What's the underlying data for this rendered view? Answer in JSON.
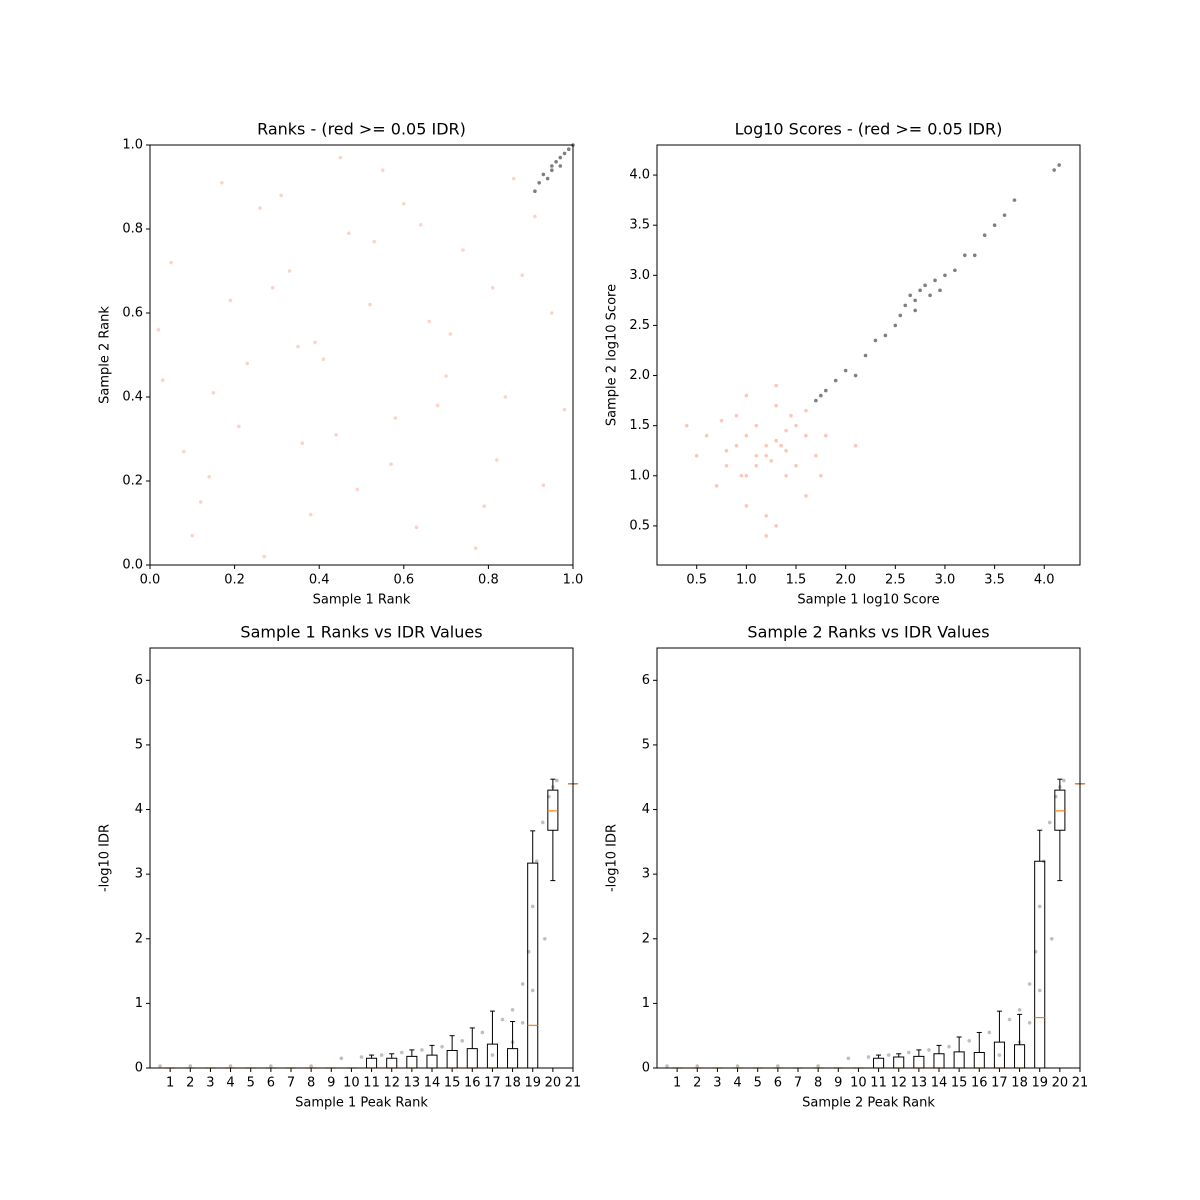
{
  "chart_data": [
    {
      "type": "scatter",
      "title": "Ranks - (red >= 0.05 IDR)",
      "xlabel": "Sample 1 Rank",
      "ylabel": "Sample 2 Rank",
      "xlim": [
        0,
        1
      ],
      "ylim": [
        0,
        1
      ],
      "xticks": [
        {
          "value": 0,
          "label": "0.0"
        },
        0.2,
        0.4,
        0.6,
        0.8,
        {
          "value": 1,
          "label": "1.0"
        }
      ],
      "yticks": [
        {
          "value": 0,
          "label": "0.0"
        },
        0.2,
        0.4,
        0.6,
        0.8,
        {
          "value": 1,
          "label": "1.0"
        }
      ],
      "series": [
        {
          "color": "#fa8060",
          "opacity": 0.35,
          "x": [
            0.05,
            0.12,
            0.23,
            0.31,
            0.44,
            0.52,
            0.63,
            0.71,
            0.84,
            0.91,
            0.08,
            0.17,
            0.29,
            0.38,
            0.47,
            0.58,
            0.66,
            0.77,
            0.88,
            0.03,
            0.14,
            0.26,
            0.35,
            0.49,
            0.55,
            0.68,
            0.74,
            0.82,
            0.95,
            0.1,
            0.21,
            0.33,
            0.41,
            0.6,
            0.79,
            0.86,
            0.02,
            0.19,
            0.36,
            0.53,
            0.7,
            0.93,
            0.27,
            0.45,
            0.64,
            0.81,
            0.15,
            0.39,
            0.57,
            0.98
          ],
          "y": [
            0.72,
            0.15,
            0.48,
            0.88,
            0.31,
            0.62,
            0.09,
            0.55,
            0.4,
            0.83,
            0.27,
            0.91,
            0.66,
            0.12,
            0.79,
            0.35,
            0.58,
            0.04,
            0.69,
            0.44,
            0.21,
            0.85,
            0.52,
            0.18,
            0.94,
            0.38,
            0.75,
            0.25,
            0.6,
            0.07,
            0.33,
            0.7,
            0.49,
            0.86,
            0.14,
            0.92,
            0.56,
            0.63,
            0.29,
            0.77,
            0.45,
            0.19,
            0.02,
            0.97,
            0.81,
            0.66,
            0.41,
            0.53,
            0.24,
            0.37
          ]
        },
        {
          "color": "#000000",
          "opacity": 0.5,
          "x": [
            0.92,
            0.93,
            0.94,
            0.95,
            0.95,
            0.96,
            0.97,
            0.97,
            0.98,
            0.99,
            1.0,
            0.91
          ],
          "y": [
            0.91,
            0.93,
            0.92,
            0.95,
            0.94,
            0.96,
            0.97,
            0.95,
            0.98,
            0.99,
            1.0,
            0.89
          ]
        }
      ]
    },
    {
      "type": "scatter",
      "title": "Log10 Scores - (red >= 0.05 IDR)",
      "xlabel": "Sample 1 log10 Score",
      "ylabel": "Sample 2 log10 Score",
      "xlim": [
        0.1,
        4.36
      ],
      "ylim": [
        0.11,
        4.3
      ],
      "xticks": [
        0.5,
        {
          "value": 1,
          "label": "1.0"
        },
        1.5,
        {
          "value": 2,
          "label": "2.0"
        },
        2.5,
        {
          "value": 3,
          "label": "3.0"
        },
        3.5,
        {
          "value": 4,
          "label": "4.0"
        }
      ],
      "yticks": [
        0.5,
        {
          "value": 1,
          "label": "1.0"
        },
        1.5,
        {
          "value": 2,
          "label": "2.0"
        },
        2.5,
        {
          "value": 3,
          "label": "3.0"
        },
        3.5,
        {
          "value": 4,
          "label": "4.0"
        }
      ],
      "series": [
        {
          "color": "#fa8060",
          "opacity": 0.45,
          "x": [
            0.6,
            0.8,
            0.9,
            1.0,
            1.1,
            1.2,
            1.3,
            1.4,
            1.5,
            1.6,
            1.7,
            0.7,
            0.9,
            1.0,
            1.1,
            1.2,
            1.3,
            1.4,
            1.5,
            1.6,
            0.8,
            1.0,
            1.2,
            1.3,
            1.4,
            1.1,
            1.25,
            1.35,
            0.95,
            1.45,
            0.5,
            1.75,
            0.4,
            1.8,
            2.1,
            1.2,
            1.0,
            1.3,
            1.6,
            0.75
          ],
          "y": [
            1.4,
            1.1,
            1.3,
            1.0,
            1.5,
            1.2,
            1.35,
            1.25,
            1.1,
            1.4,
            1.2,
            0.9,
            1.6,
            1.4,
            1.1,
            1.3,
            1.7,
            1.0,
            1.5,
            0.8,
            1.25,
            0.7,
            0.6,
            1.9,
            1.45,
            1.2,
            1.15,
            1.3,
            1.0,
            1.6,
            1.2,
            1.0,
            1.5,
            1.4,
            1.3,
            0.4,
            1.8,
            0.5,
            1.65,
            1.55
          ]
        },
        {
          "color": "#000000",
          "opacity": 0.5,
          "x": [
            1.7,
            1.75,
            1.8,
            1.9,
            2.0,
            2.1,
            2.2,
            2.3,
            2.4,
            2.5,
            2.55,
            2.6,
            2.65,
            2.7,
            2.75,
            2.8,
            2.85,
            2.9,
            2.95,
            3.0,
            3.1,
            3.2,
            3.3,
            3.4,
            3.5,
            3.6,
            3.7,
            4.1,
            4.15,
            2.7
          ],
          "y": [
            1.75,
            1.8,
            1.85,
            1.95,
            2.05,
            2.0,
            2.2,
            2.35,
            2.4,
            2.5,
            2.6,
            2.7,
            2.8,
            2.75,
            2.85,
            2.9,
            2.8,
            2.95,
            2.85,
            3.0,
            3.05,
            3.2,
            3.2,
            3.4,
            3.5,
            3.6,
            3.75,
            4.05,
            4.1,
            2.65
          ]
        }
      ]
    },
    {
      "type": "box",
      "title": "Sample 1 Ranks vs IDR Values",
      "xlabel": "Sample 1 Peak Rank",
      "ylabel": "-log10 IDR",
      "xlim": [
        0,
        21
      ],
      "ylim": [
        0,
        6.5
      ],
      "xticks": [
        1,
        2,
        3,
        4,
        5,
        6,
        7,
        8,
        9,
        10,
        11,
        12,
        13,
        14,
        15,
        16,
        17,
        18,
        19,
        20,
        21
      ],
      "yticks": [
        0,
        1,
        2,
        3,
        4,
        5,
        6
      ],
      "points": {
        "color": "#000000",
        "opacity": 0.25,
        "x": [
          0.5,
          2,
          4,
          6,
          8,
          9.5,
          10.5,
          11.5,
          12.5,
          13.5,
          14.5,
          15.5,
          16.5,
          17.5,
          18,
          18.5,
          18.8,
          19,
          19.2,
          19.5,
          19.8,
          20,
          20.2,
          17,
          18,
          18.5,
          19,
          19.6
        ],
        "y": [
          0.03,
          0.03,
          0.03,
          0.03,
          0.03,
          0.15,
          0.17,
          0.2,
          0.24,
          0.28,
          0.33,
          0.42,
          0.55,
          0.75,
          0.9,
          1.3,
          1.8,
          2.5,
          3.2,
          3.8,
          4.2,
          4.35,
          4.45,
          0.2,
          0.4,
          0.7,
          1.2,
          2.0
        ]
      },
      "boxes": {
        "whislo": [
          0,
          0,
          0,
          0,
          0,
          0,
          0,
          0,
          0,
          0,
          0,
          0,
          0,
          0,
          0,
          0,
          0,
          0,
          0,
          2.9,
          4.4
        ],
        "q1": [
          0,
          0,
          0,
          0,
          0,
          0,
          0,
          0,
          0,
          0,
          0,
          0,
          0,
          0,
          0,
          0,
          0,
          0,
          0,
          3.68,
          4.4
        ],
        "median": [
          0,
          0,
          0,
          0,
          0,
          0,
          0,
          0,
          0,
          0,
          0,
          0,
          0,
          0,
          0,
          0,
          0,
          0,
          0.66,
          3.98,
          4.4
        ],
        "q3": [
          0,
          0,
          0,
          0,
          0,
          0,
          0,
          0,
          0,
          0,
          0.15,
          0.15,
          0.18,
          0.2,
          0.27,
          0.3,
          0.37,
          0.3,
          3.17,
          4.3,
          4.4
        ],
        "whishi": [
          0,
          0,
          0,
          0,
          0,
          0,
          0,
          0,
          0,
          0,
          0.2,
          0.22,
          0.28,
          0.35,
          0.5,
          0.62,
          0.88,
          0.72,
          3.67,
          4.47,
          4.4
        ]
      }
    },
    {
      "type": "box",
      "title": "Sample 2 Ranks vs IDR Values",
      "xlabel": "Sample 2 Peak Rank",
      "ylabel": "-log10 IDR",
      "xlim": [
        0,
        21
      ],
      "ylim": [
        0,
        6.5
      ],
      "xticks": [
        1,
        2,
        3,
        4,
        5,
        6,
        7,
        8,
        9,
        10,
        11,
        12,
        13,
        14,
        15,
        16,
        17,
        18,
        19,
        20,
        21
      ],
      "yticks": [
        0,
        1,
        2,
        3,
        4,
        5,
        6
      ],
      "points": {
        "color": "#000000",
        "opacity": 0.25,
        "x": [
          0.5,
          2,
          4,
          6,
          8,
          9.5,
          10.5,
          11.5,
          12.5,
          13.5,
          14.5,
          15.5,
          16.5,
          17.5,
          18,
          18.5,
          18.8,
          19,
          19.2,
          19.5,
          19.8,
          20,
          20.2,
          17,
          18,
          18.5,
          19,
          19.6
        ],
        "y": [
          0.03,
          0.03,
          0.03,
          0.03,
          0.03,
          0.15,
          0.17,
          0.2,
          0.24,
          0.28,
          0.33,
          0.42,
          0.55,
          0.75,
          0.9,
          1.3,
          1.8,
          2.5,
          3.2,
          3.8,
          4.2,
          4.35,
          4.45,
          0.2,
          0.4,
          0.7,
          1.2,
          2.0
        ]
      },
      "boxes": {
        "whislo": [
          0,
          0,
          0,
          0,
          0,
          0,
          0,
          0,
          0,
          0,
          0,
          0,
          0,
          0,
          0,
          0,
          0,
          0,
          0,
          2.9,
          4.4
        ],
        "q1": [
          0,
          0,
          0,
          0,
          0,
          0,
          0,
          0,
          0,
          0,
          0,
          0,
          0,
          0,
          0,
          0,
          0,
          0,
          0,
          3.68,
          4.4
        ],
        "median": [
          0,
          0,
          0,
          0,
          0,
          0,
          0,
          0,
          0,
          0,
          0,
          0,
          0,
          0,
          0,
          0,
          0,
          0,
          0.78,
          3.98,
          4.4
        ],
        "q3": [
          0,
          0,
          0,
          0,
          0,
          0,
          0,
          0,
          0,
          0,
          0.15,
          0.17,
          0.18,
          0.22,
          0.25,
          0.24,
          0.4,
          0.36,
          3.2,
          4.3,
          4.4
        ],
        "whishi": [
          0,
          0,
          0,
          0,
          0,
          0,
          0,
          0,
          0,
          0,
          0.2,
          0.22,
          0.28,
          0.35,
          0.48,
          0.55,
          0.88,
          0.83,
          3.68,
          4.47,
          4.4
        ]
      }
    }
  ]
}
